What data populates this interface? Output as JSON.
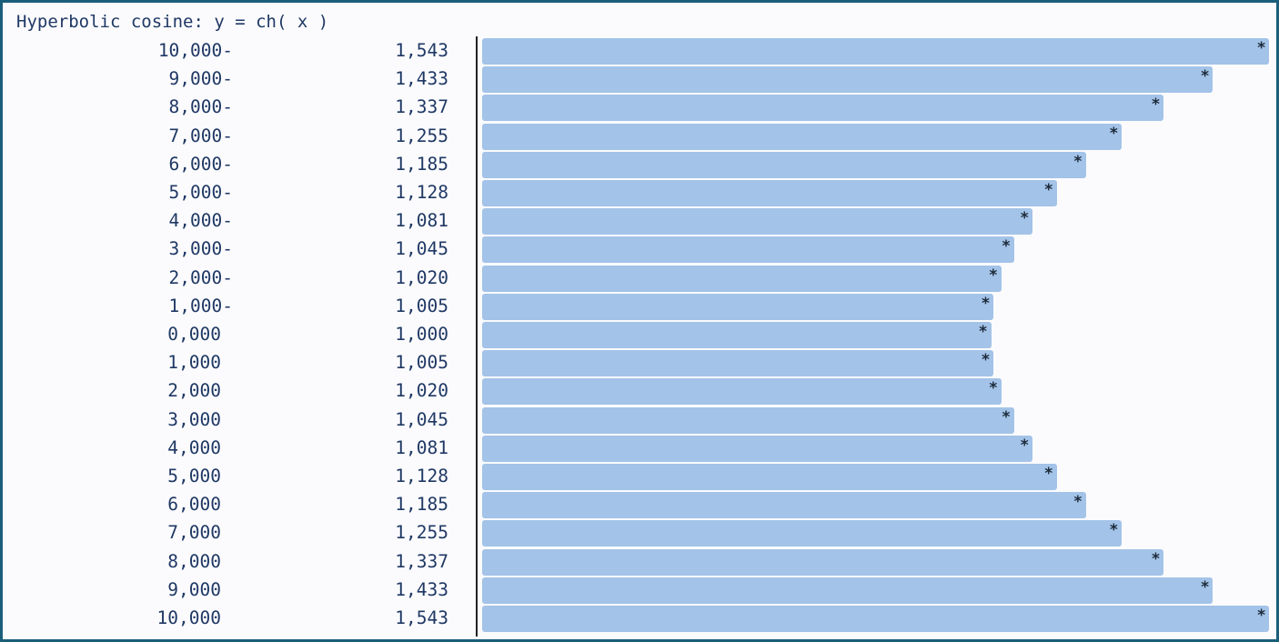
{
  "chart_data": {
    "type": "bar",
    "orientation": "horizontal",
    "title": "Hyperbolic cosine: y = ch( x )",
    "categories": [
      "10,000-",
      "9,000-",
      "8,000-",
      "7,000-",
      "6,000-",
      "5,000-",
      "4,000-",
      "3,000-",
      "2,000-",
      "1,000-",
      "0,000",
      "1,000",
      "2,000",
      "3,000",
      "4,000",
      "5,000",
      "6,000",
      "7,000",
      "8,000",
      "9,000",
      "10,000"
    ],
    "value_labels": [
      "1,543",
      "1,433",
      "1,337",
      "1,255",
      "1,185",
      "1,128",
      "1,081",
      "1,045",
      "1,020",
      "1,005",
      "1,000",
      "1,005",
      "1,020",
      "1,045",
      "1,081",
      "1,128",
      "1,185",
      "1,255",
      "1,337",
      "1,433",
      "1,543"
    ],
    "values": [
      1.543,
      1.433,
      1.337,
      1.255,
      1.185,
      1.128,
      1.081,
      1.045,
      1.02,
      1.005,
      1.0,
      1.005,
      1.02,
      1.045,
      1.081,
      1.128,
      1.185,
      1.255,
      1.337,
      1.433,
      1.543
    ],
    "marker": "*",
    "bar_color": "#a3c3e8",
    "text_color": "#1f3864",
    "border_color": "#1b5e7a"
  }
}
